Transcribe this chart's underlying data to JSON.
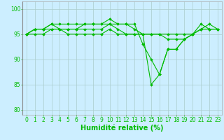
{
  "x": [
    0,
    1,
    2,
    3,
    4,
    5,
    6,
    7,
    8,
    9,
    10,
    11,
    12,
    13,
    14,
    15,
    16,
    17,
    18,
    19,
    20,
    21,
    22,
    23
  ],
  "lines": [
    [
      95,
      96,
      96,
      97,
      97,
      97,
      97,
      97,
      97,
      97,
      98,
      97,
      97,
      97,
      93,
      90,
      87,
      92,
      92,
      94,
      95,
      97,
      96,
      96
    ],
    [
      95,
      96,
      96,
      97,
      96,
      96,
      96,
      97,
      97,
      97,
      97,
      97,
      97,
      96,
      95,
      85,
      87,
      92,
      92,
      94,
      95,
      96,
      97,
      96
    ],
    [
      95,
      96,
      96,
      96,
      96,
      96,
      96,
      96,
      96,
      96,
      97,
      96,
      95,
      95,
      95,
      95,
      95,
      95,
      95,
      95,
      95,
      96,
      96,
      96
    ],
    [
      95,
      95,
      95,
      96,
      96,
      95,
      95,
      95,
      95,
      95,
      96,
      95,
      95,
      95,
      95,
      95,
      95,
      94,
      94,
      94,
      95,
      96,
      96,
      96
    ]
  ],
  "line_color": "#00bb00",
  "marker": "D",
  "markersize": 1.8,
  "linewidth": 0.8,
  "xlabel": "Humidité relative (%)",
  "xlabel_color": "#00bb00",
  "xlabel_fontsize": 7,
  "ylabel_ticks": [
    80,
    85,
    90,
    95,
    100
  ],
  "xlim": [
    -0.5,
    23.5
  ],
  "ylim": [
    79,
    101.5
  ],
  "background_color": "#cceeff",
  "grid_color": "#aacccc",
  "tick_fontsize": 5.5,
  "fig_bg": "#cceeff"
}
